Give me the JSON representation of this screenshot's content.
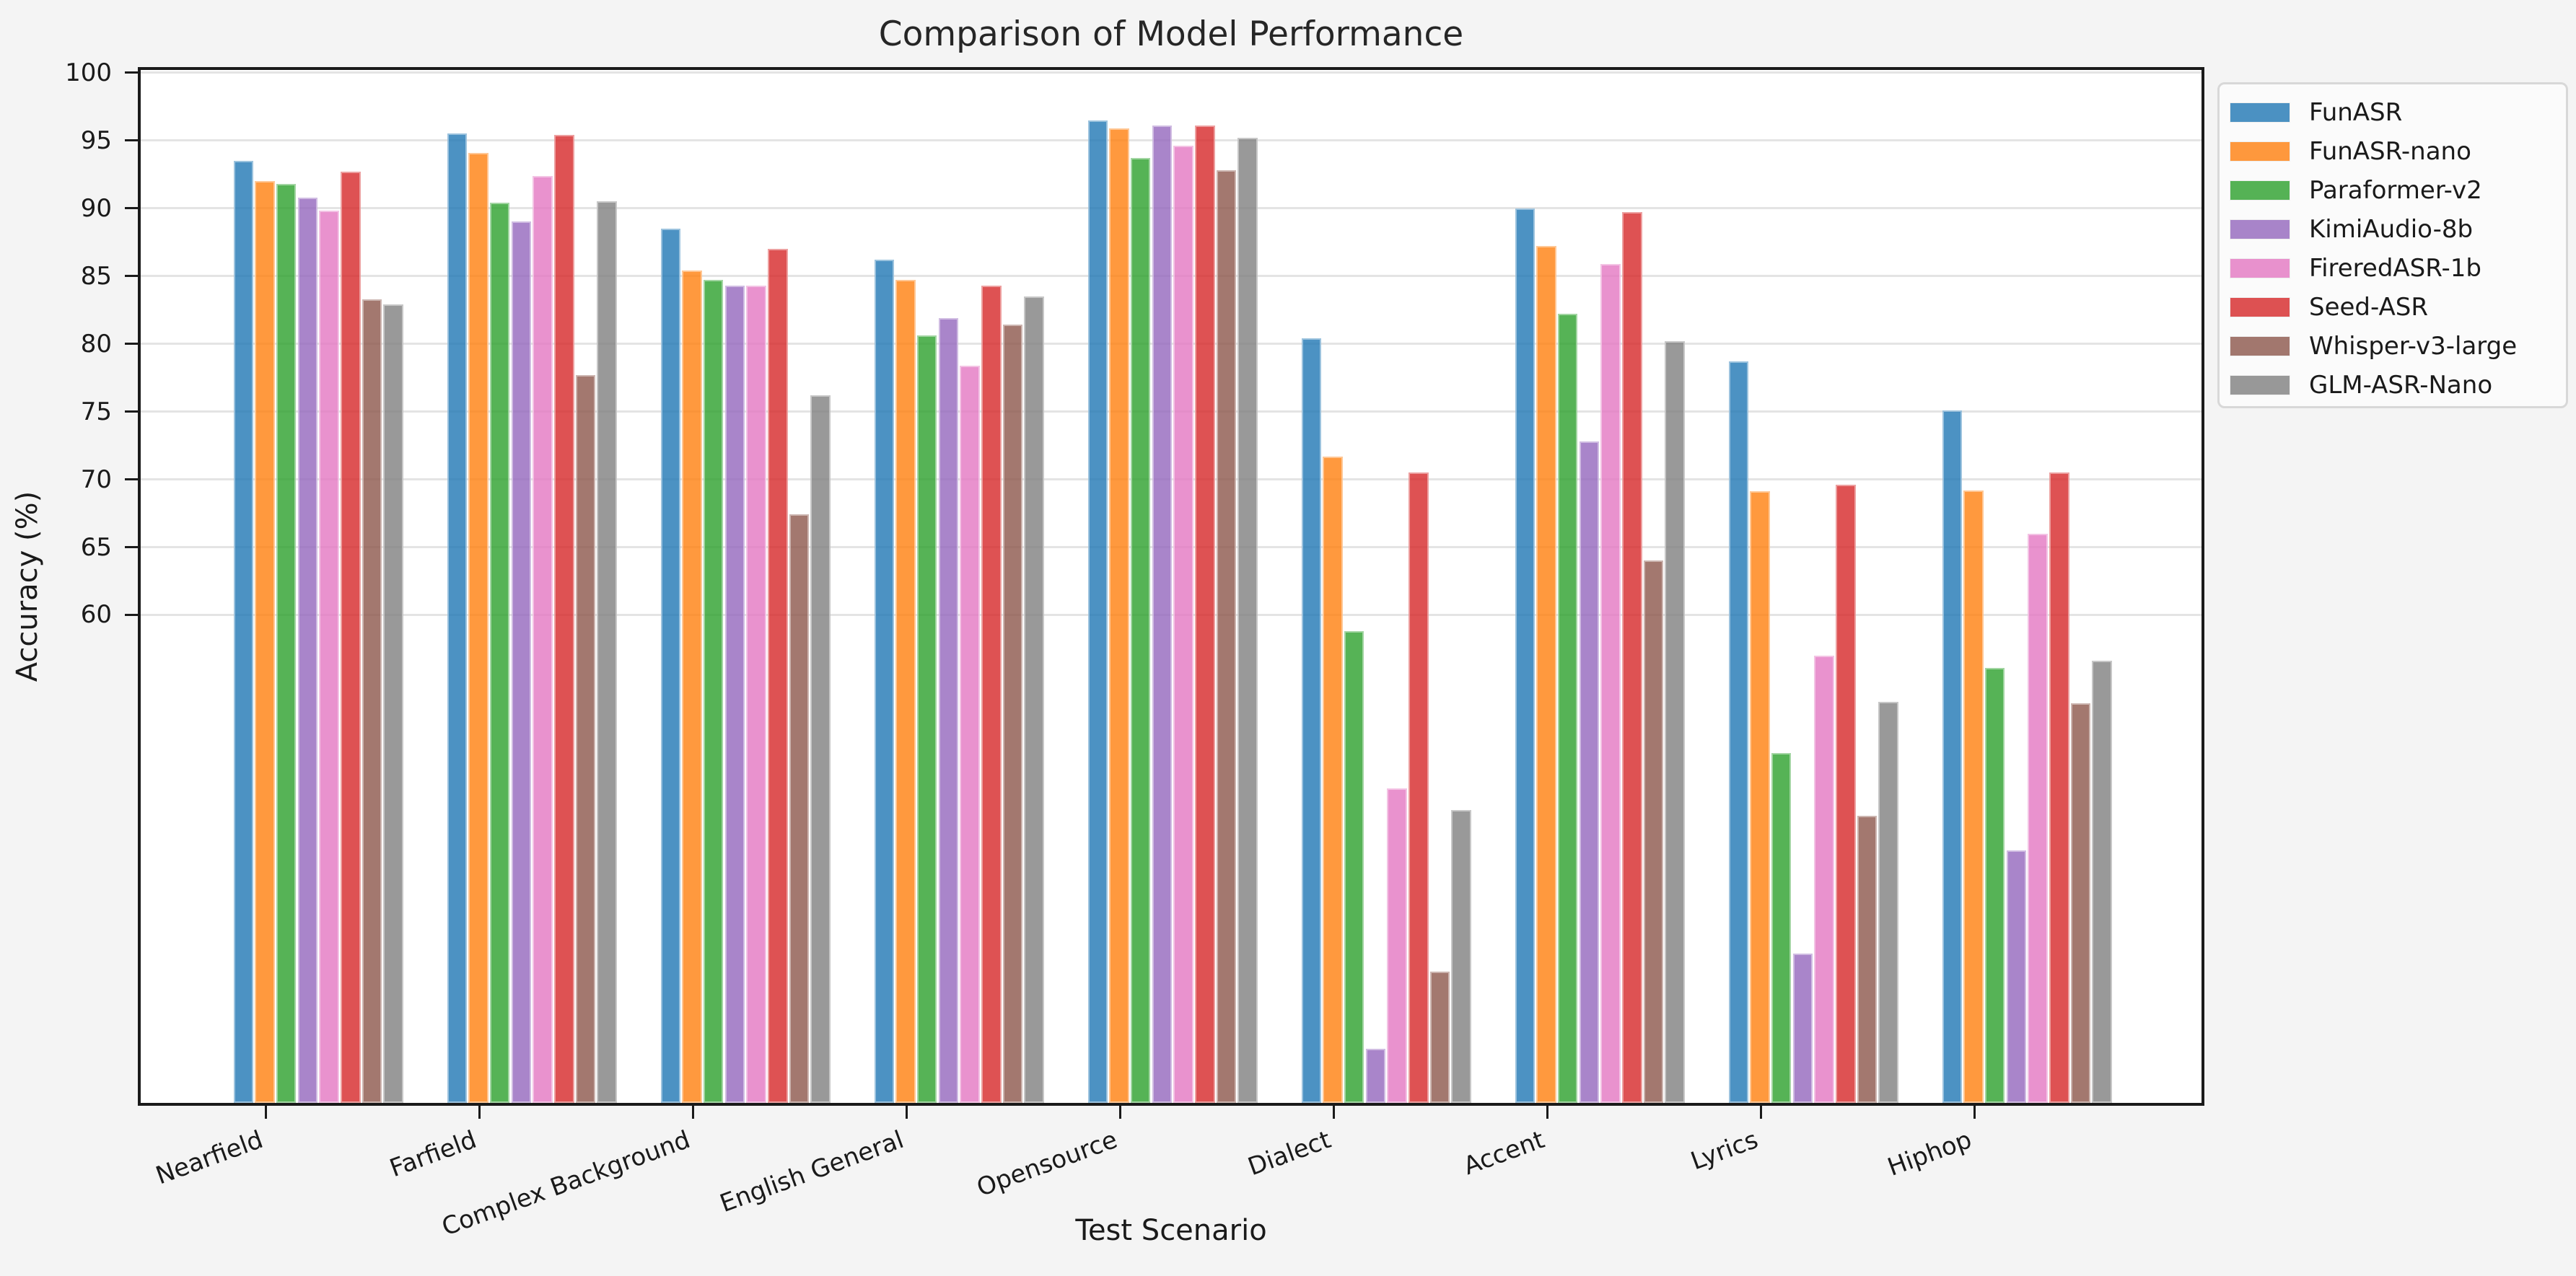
{
  "figure": {
    "background_color": "#f4f4f4",
    "plot_background_color": "#ffffff",
    "grid_color": "#e4e4e4",
    "spine_color": "#1a1a1a"
  },
  "chart_data": {
    "type": "bar",
    "title": "Comparison of Model Performance",
    "xlabel": "Test Scenario",
    "ylabel": "Accuracy (%)",
    "categories": [
      "Nearfield",
      "Farfield",
      "Complex Background",
      "English General",
      "Opensource",
      "Dialect",
      "Accent",
      "Lyrics",
      "Hiphop"
    ],
    "series": [
      {
        "name": "FunASR",
        "color": "#1f77b4",
        "values": [
          93.5,
          95.5,
          88.5,
          86.2,
          96.5,
          80.4,
          90.0,
          78.7,
          75.1
        ]
      },
      {
        "name": "FunASR-nano",
        "color": "#ff7f0e",
        "values": [
          92.0,
          94.1,
          85.4,
          84.7,
          95.9,
          71.7,
          87.2,
          69.1,
          69.2
        ]
      },
      {
        "name": "Paraformer-v2",
        "color": "#2ca02c",
        "values": [
          91.8,
          90.4,
          84.7,
          80.6,
          93.7,
          58.8,
          82.2,
          49.8,
          56.1
        ]
      },
      {
        "name": "KimiAudio-8b",
        "color": "#9467bd",
        "values": [
          90.8,
          89.0,
          84.3,
          81.9,
          96.1,
          28.0,
          72.8,
          35.0,
          42.6
        ]
      },
      {
        "name": "FireredASR-1b",
        "color": "#e377c2",
        "values": [
          89.8,
          92.4,
          84.3,
          78.4,
          94.6,
          47.2,
          85.9,
          57.0,
          66.0
        ]
      },
      {
        "name": "Seed-ASR",
        "color": "#d62728",
        "values": [
          92.7,
          95.4,
          87.0,
          84.3,
          96.1,
          70.5,
          89.7,
          69.6,
          70.5
        ]
      },
      {
        "name": "Whisper-v3-large",
        "color": "#8c564b",
        "values": [
          83.3,
          77.7,
          67.4,
          81.4,
          92.8,
          33.7,
          64.0,
          45.2,
          53.5
        ]
      },
      {
        "name": "GLM-ASR-Nano",
        "color": "#7f7f7f",
        "values": [
          82.9,
          90.5,
          76.2,
          83.5,
          95.2,
          45.6,
          80.2,
          53.6,
          56.6
        ]
      }
    ],
    "bar_alpha": 0.8,
    "yticks": [
      60,
      65,
      70,
      75,
      80,
      85,
      90,
      95,
      100
    ],
    "ylim": [
      24.0,
      100.2
    ],
    "grid": "horizontal",
    "legend_position": "outside-upper-right"
  }
}
